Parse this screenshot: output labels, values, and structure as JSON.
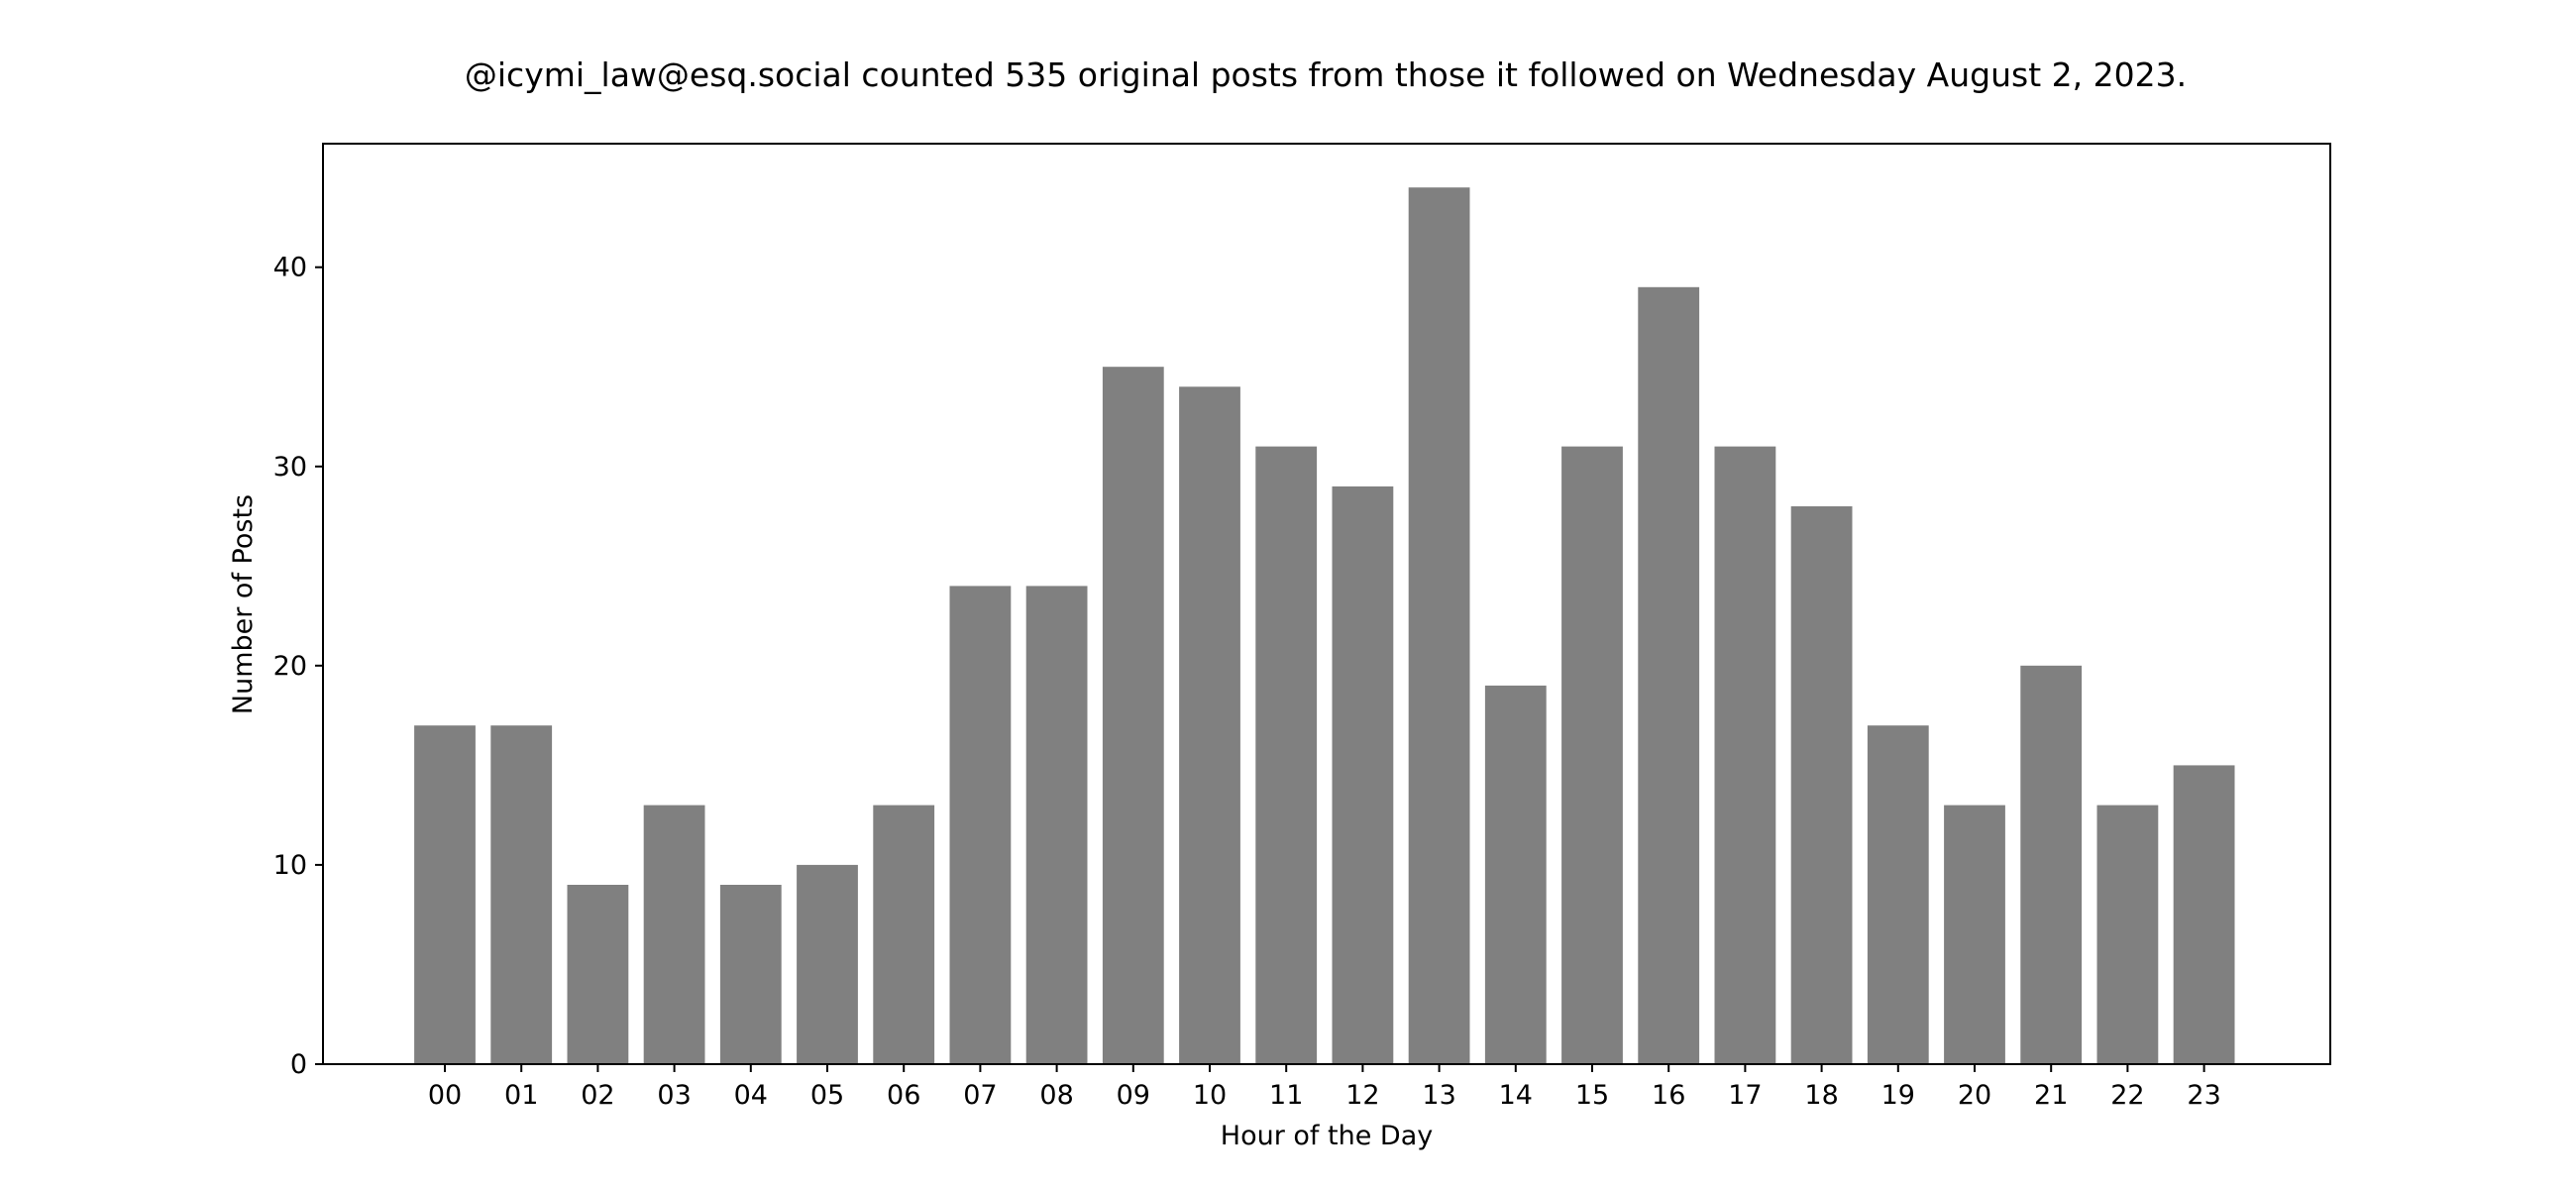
{
  "chart_data": {
    "type": "bar",
    "title": "@icymi_law@esq.social counted 535 original posts from those it followed on Wednesday August 2, 2023.",
    "xlabel": "Hour of the Day",
    "ylabel": "Number of Posts",
    "categories": [
      "00",
      "01",
      "02",
      "03",
      "04",
      "05",
      "06",
      "07",
      "08",
      "09",
      "10",
      "11",
      "12",
      "13",
      "14",
      "15",
      "16",
      "17",
      "18",
      "19",
      "20",
      "21",
      "22",
      "23"
    ],
    "values": [
      17,
      17,
      9,
      13,
      9,
      10,
      13,
      24,
      24,
      35,
      34,
      31,
      29,
      44,
      19,
      31,
      39,
      31,
      28,
      17,
      13,
      20,
      13,
      15
    ],
    "ylim": [
      0,
      46.2
    ],
    "yticks": [
      0,
      10,
      20,
      30,
      40
    ],
    "grid": false,
    "bar_color": "#808080",
    "axis_color": "#000000"
  }
}
